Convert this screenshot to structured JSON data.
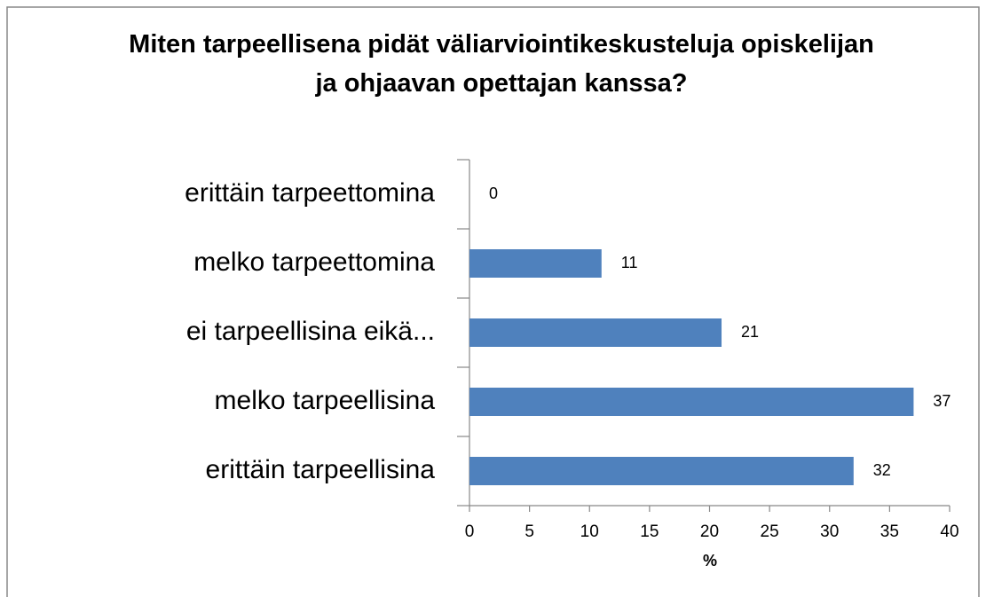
{
  "chart_data": {
    "type": "bar",
    "orientation": "horizontal",
    "title": "Miten tarpeellisena pidät väliarviointikeskusteluja opiskelijan ja ohjaavan opettajan kanssa?",
    "categories": [
      "erittäin tarpeettomina",
      "melko tarpeettomina",
      "ei tarpeellisina eikä...",
      "melko tarpeellisina",
      "erittäin tarpeellisina"
    ],
    "values": [
      0,
      11,
      21,
      37,
      32
    ],
    "color": "#4f81bd",
    "x_label": "%",
    "xlim": [
      0,
      40
    ],
    "xticks": [
      0,
      5,
      10,
      15,
      20,
      25,
      30,
      35,
      40
    ],
    "grid": false
  }
}
